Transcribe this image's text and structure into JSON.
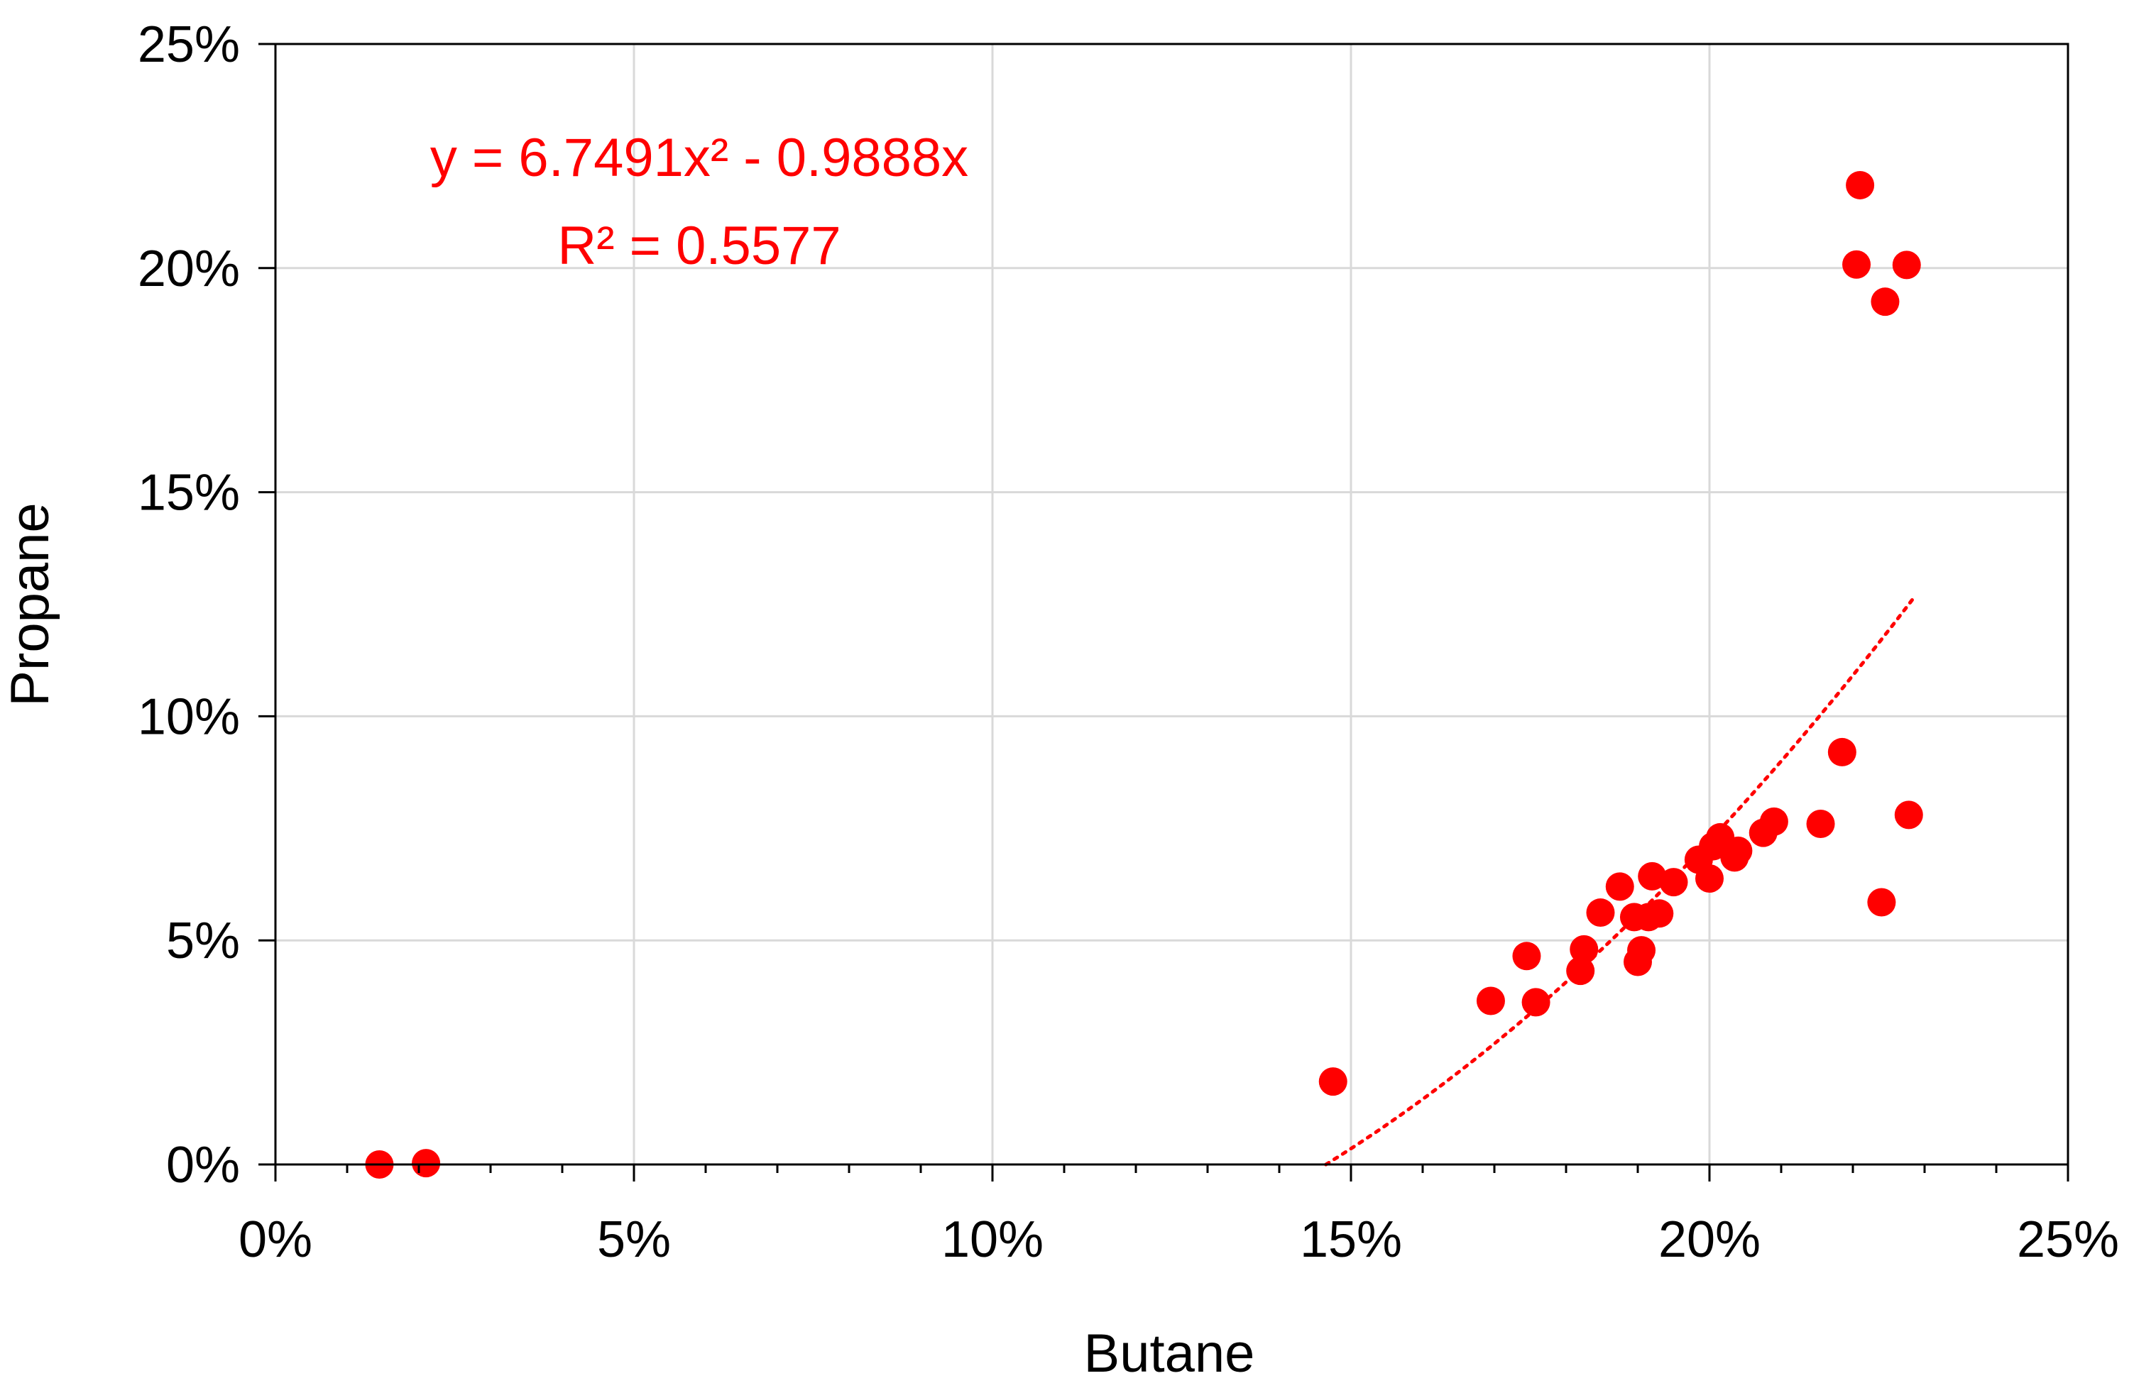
{
  "chart_data": {
    "type": "scatter",
    "title": "",
    "xlabel": "Butane",
    "ylabel": "Propane",
    "xlim": [
      0,
      0.25
    ],
    "ylim": [
      0,
      0.25
    ],
    "x_ticks": [
      0,
      0.05,
      0.1,
      0.15,
      0.2,
      0.25
    ],
    "x_tick_labels": [
      "0%",
      "5%",
      "10%",
      "15%",
      "20%",
      "25%"
    ],
    "y_ticks": [
      0,
      0.05,
      0.1,
      0.15,
      0.2,
      0.25
    ],
    "y_tick_labels": [
      "0%",
      "5%",
      "10%",
      "15%",
      "20%",
      "25%"
    ],
    "grid": true,
    "legend": "none",
    "series": [
      {
        "color": "#ff0000",
        "marker": "circle",
        "points": [
          [
            0.0145,
            0.0
          ],
          [
            0.021,
            0.0003
          ],
          [
            0.1475,
            0.0185
          ],
          [
            0.1695,
            0.0365
          ],
          [
            0.1745,
            0.0465
          ],
          [
            0.1758,
            0.0362
          ],
          [
            0.182,
            0.0432
          ],
          [
            0.1825,
            0.048
          ],
          [
            0.1848,
            0.0562
          ],
          [
            0.1875,
            0.062
          ],
          [
            0.1895,
            0.0552
          ],
          [
            0.19,
            0.0452
          ],
          [
            0.1905,
            0.0478
          ],
          [
            0.1915,
            0.0552
          ],
          [
            0.192,
            0.0643
          ],
          [
            0.193,
            0.056
          ],
          [
            0.195,
            0.063
          ],
          [
            0.1985,
            0.068
          ],
          [
            0.2,
            0.0638
          ],
          [
            0.2005,
            0.071
          ],
          [
            0.2015,
            0.073
          ],
          [
            0.2035,
            0.0685
          ],
          [
            0.204,
            0.07
          ],
          [
            0.2075,
            0.074
          ],
          [
            0.209,
            0.0765
          ],
          [
            0.2155,
            0.076
          ],
          [
            0.2185,
            0.092
          ],
          [
            0.2205,
            0.2008
          ],
          [
            0.221,
            0.2185
          ],
          [
            0.224,
            0.0585
          ],
          [
            0.2245,
            0.1925
          ],
          [
            0.2275,
            0.2007
          ],
          [
            0.2278,
            0.078
          ]
        ]
      }
    ],
    "trendline": {
      "type": "polynomial",
      "order": 2,
      "coefficients": [
        6.7491,
        -0.9888,
        0
      ],
      "x_range": [
        0.1465,
        0.2285
      ],
      "color": "#ff0000",
      "style": "dotted",
      "equation_label": "y = 6.7491x² - 0.9888x",
      "r2_label": "R² = 0.5577"
    }
  }
}
